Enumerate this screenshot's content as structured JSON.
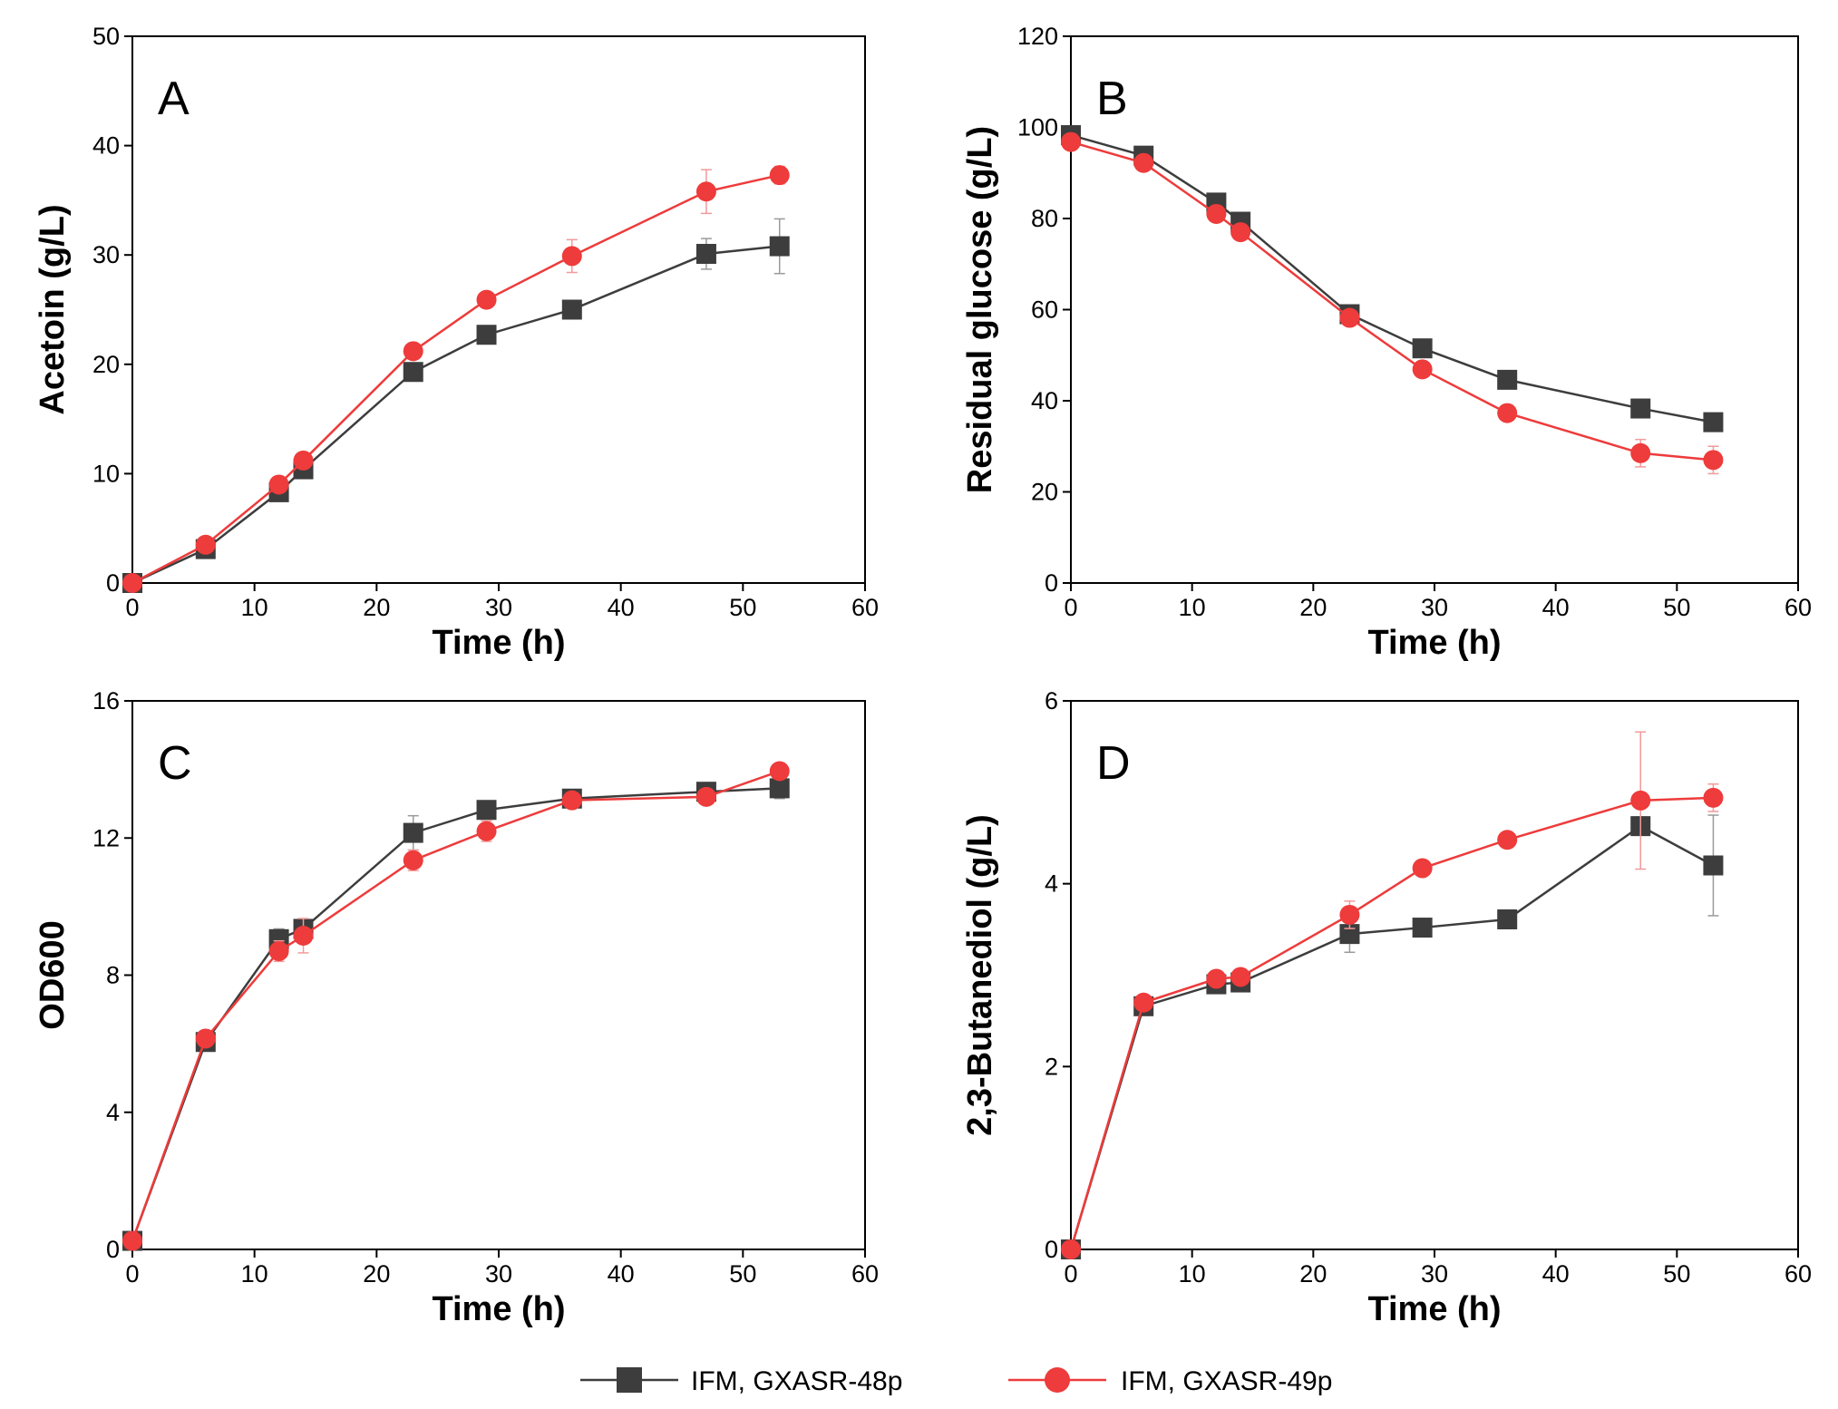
{
  "colors": {
    "series1": "#3d3d3d",
    "series2": "#ee3b3b",
    "err1": "#9a9a9a",
    "err2": "#f29a9a"
  },
  "legend": {
    "series1": "IFM, GXASR-48p",
    "series2": "IFM, GXASR-49p"
  },
  "chart_data": [
    {
      "type": "line",
      "panel": "A",
      "xlabel": "Time (h)",
      "ylabel": "Acetoin (g/L)",
      "xlim": [
        0,
        60
      ],
      "ylim": [
        0,
        50
      ],
      "xticks": [
        0,
        10,
        20,
        30,
        40,
        50,
        60
      ],
      "yticks": [
        0,
        10,
        20,
        30,
        40,
        50
      ],
      "x": [
        0,
        6,
        12,
        14,
        23,
        29,
        36,
        47,
        53
      ],
      "series": [
        {
          "name": "IFM, GXASR-48p",
          "marker": "square",
          "values": [
            0,
            3.1,
            8.3,
            10.4,
            19.3,
            22.7,
            25.0,
            30.1,
            30.8
          ],
          "errors": [
            0,
            0.4,
            0.5,
            0.6,
            0.8,
            0.6,
            0.8,
            1.4,
            2.5
          ]
        },
        {
          "name": "IFM, GXASR-49p",
          "marker": "circle",
          "values": [
            0,
            3.5,
            9.0,
            11.2,
            21.2,
            25.9,
            29.9,
            35.8,
            37.3
          ],
          "errors": [
            0,
            0.4,
            0.5,
            0.6,
            0.6,
            0.6,
            1.5,
            2.0,
            0.8
          ]
        }
      ]
    },
    {
      "type": "line",
      "panel": "B",
      "xlabel": "Time (h)",
      "ylabel": "Residual glucose (g/L)",
      "xlim": [
        0,
        60
      ],
      "ylim": [
        0,
        120
      ],
      "xticks": [
        0,
        10,
        20,
        30,
        40,
        50,
        60
      ],
      "yticks": [
        0,
        20,
        40,
        60,
        80,
        100,
        120
      ],
      "x": [
        0,
        6,
        12,
        14,
        23,
        29,
        36,
        47,
        53
      ],
      "series": [
        {
          "name": "IFM, GXASR-48p",
          "marker": "square",
          "values": [
            98.3,
            93.8,
            83.5,
            79.3,
            59.0,
            51.5,
            44.6,
            38.3,
            35.3
          ],
          "errors": [
            1.2,
            1.0,
            1.2,
            1.2,
            1.0,
            1.2,
            1.0,
            1.2,
            1.5
          ]
        },
        {
          "name": "IFM, GXASR-49p",
          "marker": "circle",
          "values": [
            96.8,
            92.2,
            81.0,
            77.0,
            58.2,
            46.9,
            37.3,
            28.5,
            27.0
          ],
          "errors": [
            1.2,
            1.0,
            1.2,
            1.2,
            1.0,
            1.2,
            1.0,
            3.0,
            3.0
          ]
        }
      ]
    },
    {
      "type": "line",
      "panel": "C",
      "xlabel": "Time (h)",
      "ylabel": "OD600",
      "xlim": [
        0,
        60
      ],
      "ylim": [
        0,
        16
      ],
      "xticks": [
        0,
        10,
        20,
        30,
        40,
        50,
        60
      ],
      "yticks": [
        0,
        4,
        8,
        12,
        16
      ],
      "x": [
        0,
        6,
        12,
        14,
        23,
        29,
        36,
        47,
        53
      ],
      "series": [
        {
          "name": "IFM, GXASR-48p",
          "marker": "square",
          "values": [
            0.25,
            6.05,
            9.05,
            9.35,
            12.15,
            12.82,
            13.15,
            13.35,
            13.45
          ],
          "errors": [
            0,
            0.2,
            0.3,
            0.3,
            0.5,
            0.2,
            0.2,
            0.2,
            0.3
          ]
        },
        {
          "name": "IFM, GXASR-49p",
          "marker": "circle",
          "values": [
            0.25,
            6.15,
            8.7,
            9.15,
            11.35,
            12.2,
            13.1,
            13.2,
            13.95
          ],
          "errors": [
            0,
            0.2,
            0.3,
            0.5,
            0.3,
            0.3,
            0.2,
            0.2,
            0.2
          ]
        }
      ]
    },
    {
      "type": "line",
      "panel": "D",
      "xlabel": "Time (h)",
      "ylabel": "2,3-Butanediol (g/L)",
      "xlim": [
        0,
        60
      ],
      "ylim": [
        0,
        6
      ],
      "xticks": [
        0,
        10,
        20,
        30,
        40,
        50,
        60
      ],
      "yticks": [
        0,
        2,
        4,
        6
      ],
      "x": [
        0,
        6,
        12,
        14,
        23,
        29,
        36,
        47,
        53
      ],
      "series": [
        {
          "name": "IFM, GXASR-48p",
          "marker": "square",
          "values": [
            0,
            2.66,
            2.9,
            2.92,
            3.45,
            3.52,
            3.61,
            4.63,
            4.2
          ],
          "errors": [
            0,
            0.05,
            0.05,
            0.05,
            0.2,
            0.05,
            0.1,
            0.1,
            0.55
          ]
        },
        {
          "name": "IFM, GXASR-49p",
          "marker": "circle",
          "values": [
            0,
            2.7,
            2.96,
            2.98,
            3.66,
            4.17,
            4.48,
            4.91,
            4.94
          ],
          "errors": [
            0,
            0.05,
            0.05,
            0.05,
            0.15,
            0.05,
            0.05,
            0.75,
            0.15
          ]
        }
      ]
    }
  ]
}
